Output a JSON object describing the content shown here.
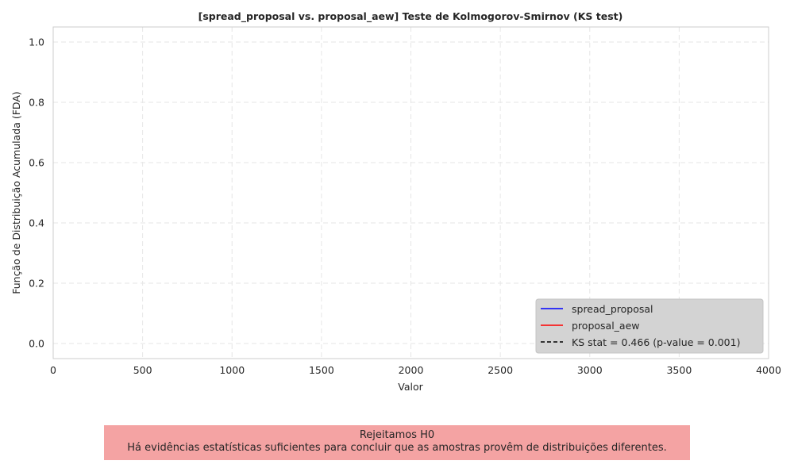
{
  "chart_data": {
    "type": "line",
    "title": "[spread_proposal vs. proposal_aew] Teste de Kolmogorov-Smirnov (KS test)",
    "xlabel": "Valor",
    "ylabel": "Função de Distribuição Acumulada (FDA)",
    "xlim": [
      0,
      4000
    ],
    "ylim": [
      -0.05,
      1.05
    ],
    "xticks": [
      0,
      500,
      1000,
      1500,
      2000,
      2500,
      3000,
      3500,
      4000
    ],
    "yticks": [
      0.0,
      0.2,
      0.4,
      0.6,
      0.8,
      1.0
    ],
    "xtick_labels": [
      "0",
      "500",
      "1000",
      "1500",
      "2000",
      "2500",
      "3000",
      "3500",
      "4000"
    ],
    "ytick_labels": [
      "0.0",
      "0.2",
      "0.4",
      "0.6",
      "0.8",
      "1.0"
    ],
    "grid": true,
    "legend_position": "lower-right",
    "series": [
      {
        "name": "spread_proposal",
        "color": "#0000ff",
        "style": "solid",
        "x": [],
        "y": []
      },
      {
        "name": "proposal_aew",
        "color": "#ff0000",
        "style": "solid",
        "x": [],
        "y": []
      },
      {
        "name": "KS stat = 0.466 (p-value = 0.001)",
        "color": "#000000",
        "style": "dashed",
        "x": [],
        "y": []
      }
    ]
  },
  "conclusion": {
    "line1": "Rejeitamos H0",
    "line2": "Há evidências estatísticas suficientes para concluir que as amostras provêm de distribuições diferentes.",
    "background": "#f4a3a3"
  }
}
